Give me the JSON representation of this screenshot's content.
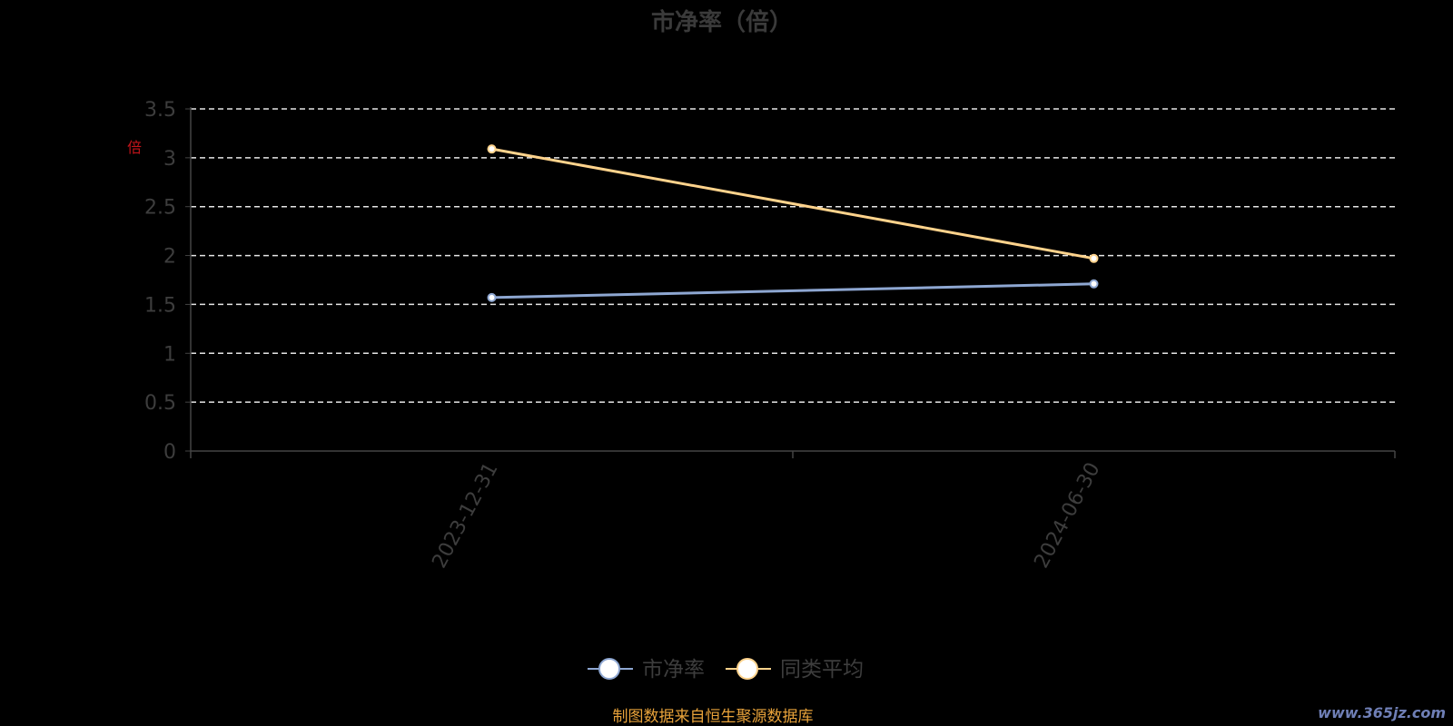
{
  "chart_data": {
    "type": "line",
    "title": "市净率（倍）",
    "ylabel": "倍",
    "categories": [
      "2023-12-31",
      "2024-06-30"
    ],
    "ylim": [
      0,
      3.5
    ],
    "yticks": [
      "0",
      "0.5",
      "1",
      "1.5",
      "2",
      "2.5",
      "3",
      "3.5"
    ],
    "grid": true,
    "legend_position": "bottom",
    "series": [
      {
        "name": "市净率",
        "values": [
          1.57,
          1.71
        ],
        "color": "#8ea7d2"
      },
      {
        "name": "同类平均",
        "values": [
          3.09,
          1.97
        ],
        "color": "#ffd38c"
      }
    ]
  },
  "source_note": "制图数据来自恒生聚源数据库",
  "watermark": "www.365jz.com"
}
